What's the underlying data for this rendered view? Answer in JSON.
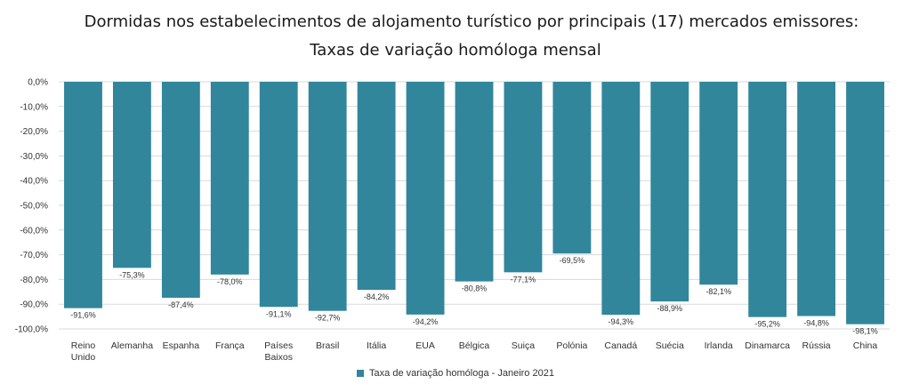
{
  "chart_data": {
    "type": "bar",
    "title": "Dormidas nos estabelecimentos de alojamento turístico por principais (17) mercados emissores:",
    "subtitle": "Taxas de variação homóloga mensal",
    "categories": [
      [
        "Reino",
        "Unido"
      ],
      [
        "Alemanha"
      ],
      [
        "Espanha"
      ],
      [
        "França"
      ],
      [
        "Países",
        "Baixos"
      ],
      [
        "Brasil"
      ],
      [
        "Itália"
      ],
      [
        "EUA"
      ],
      [
        "Bélgica"
      ],
      [
        "Suiça"
      ],
      [
        "Polónia"
      ],
      [
        "Canadá"
      ],
      [
        "Suécia"
      ],
      [
        "Irlanda"
      ],
      [
        "Dinamarca"
      ],
      [
        "Rússia"
      ],
      [
        "China"
      ]
    ],
    "series": [
      {
        "name": "Taxa de variação homóloga - Janeiro 2021",
        "color": "#31869b",
        "values": [
          -91.6,
          -75.3,
          -87.4,
          -78.0,
          -91.1,
          -92.7,
          -84.2,
          -94.2,
          -80.8,
          -77.1,
          -69.5,
          -94.3,
          -88.9,
          -82.1,
          -95.2,
          -94.8,
          -98.1
        ],
        "labels": [
          "-91,6%",
          "-75,3%",
          "-87,4%",
          "-78,0%",
          "-91,1%",
          "-92,7%",
          "-84,2%",
          "-94,2%",
          "-80,8%",
          "-77,1%",
          "-69,5%",
          "-94,3%",
          "-88,9%",
          "-82,1%",
          "-95,2%",
          "-94,8%",
          "-98,1%"
        ]
      }
    ],
    "ylim": [
      -100,
      0
    ],
    "yticks": [
      0,
      -10,
      -20,
      -30,
      -40,
      -50,
      -60,
      -70,
      -80,
      -90,
      -100
    ],
    "ytick_labels": [
      "0,0%",
      "-10,0%",
      "-20,0%",
      "-30,0%",
      "-40,0%",
      "-50,0%",
      "-60,0%",
      "-70,0%",
      "-80,0%",
      "-90,0%",
      "-100,0%"
    ],
    "grid": true,
    "legend": "bottom"
  }
}
